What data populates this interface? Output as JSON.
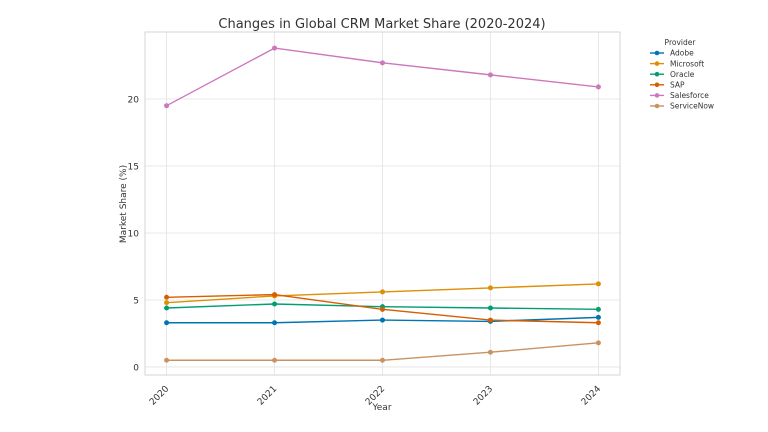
{
  "chart_data": {
    "type": "line",
    "title": "Changes in Global CRM Market Share (2020-2024)",
    "x_label": "Year",
    "y_label": "Market Share (%)",
    "legend_title": "Provider",
    "x": [
      2020,
      2021,
      2022,
      2023,
      2024
    ],
    "series": [
      {
        "name": "Adobe",
        "color": "#0173b2",
        "values": [
          3.3,
          3.3,
          3.5,
          3.4,
          3.7
        ]
      },
      {
        "name": "Microsoft",
        "color": "#de8f05",
        "values": [
          4.8,
          5.3,
          5.6,
          5.9,
          6.2
        ]
      },
      {
        "name": "Oracle",
        "color": "#029e73",
        "values": [
          4.4,
          4.7,
          4.5,
          4.4,
          4.3
        ]
      },
      {
        "name": "SAP",
        "color": "#d55e00",
        "values": [
          5.2,
          5.4,
          4.3,
          3.5,
          3.3
        ]
      },
      {
        "name": "Salesforce",
        "color": "#cc78bc",
        "values": [
          19.5,
          23.8,
          22.7,
          21.8,
          20.9
        ]
      },
      {
        "name": "ServiceNow",
        "color": "#ca9161",
        "values": [
          0.5,
          0.5,
          0.5,
          1.1,
          1.8
        ]
      }
    ],
    "xlim": [
      2019.8,
      2024.2
    ],
    "xticks": [
      2020,
      2021,
      2022,
      2023,
      2024
    ],
    "ylim": [
      -0.6,
      25
    ],
    "yticks": [
      0,
      5,
      10,
      15,
      20
    ],
    "grid": true,
    "legend": "outside-upper-right"
  }
}
